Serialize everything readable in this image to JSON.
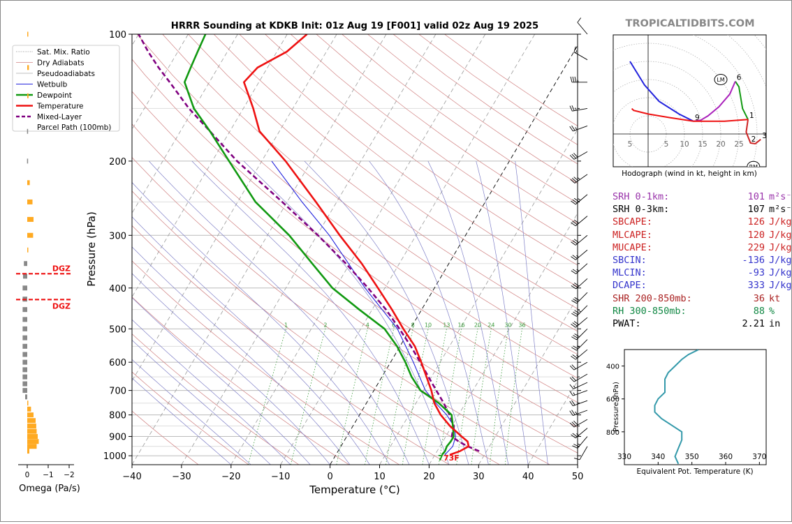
{
  "title": "HRRR Sounding at KDKB Init: 01z Aug 19 [F001] valid 02z Aug 19 2025",
  "site": "TROPICALTIDBITS.COM",
  "colors": {
    "temperature": "#ee1111",
    "dewpoint": "#119911",
    "wetbulb": "#2222dd",
    "parcel": "#800080",
    "dry_adiabat": "#d08080",
    "moist_adiabat": "#8080c8",
    "mixing_ratio": "#3a9a3a",
    "theta_e": "#3399aa",
    "dgz": "#ee1111",
    "omega_neg": "#ffaa22",
    "omega_pos": "#888888"
  },
  "legend": [
    {
      "label": "Sat. Mix. Ratio",
      "style": "dotted"
    },
    {
      "label": "Dry Adiabats",
      "style": "dry"
    },
    {
      "label": "Pseudoadiabats",
      "style": "moist"
    },
    {
      "label": "Wetbulb",
      "style": "wetbulb"
    },
    {
      "label": "Dewpoint",
      "style": "dewpoint"
    },
    {
      "label": "Temperature",
      "style": "temperature"
    },
    {
      "label": "Mixed-Layer",
      "label2": "Parcel Path (100mb)",
      "style": "parcel"
    }
  ],
  "omega_label": "Omega (Pa/s)",
  "omega_ticks": [
    "0",
    "−1",
    "−2"
  ],
  "dgz_label": "DGZ",
  "hodograph_caption": "Hodograph (wind in kt, height in km)",
  "lm_label": "LM",
  "rm_label": "RM",
  "theta_e_xlabel": "Equivalent Pot. Temperature (K)",
  "theta_e_ylabel": "Pressure (hPa)",
  "surface_temp_label": "73F",
  "surface_dew_label": "7",
  "params": [
    {
      "label": "SRH 0-1km:",
      "value": "101",
      "unit": "m²s⁻²",
      "color": "#9933aa"
    },
    {
      "label": "SRH 0-3km:",
      "value": "107",
      "unit": "m²s⁻²",
      "color": "#000000"
    },
    {
      "label": "SBCAPE:",
      "value": "126",
      "unit": "J/kg",
      "color": "#cc2222"
    },
    {
      "label": "MLCAPE:",
      "value": "120",
      "unit": "J/kg",
      "color": "#cc2222"
    },
    {
      "label": "MUCAPE:",
      "value": "229",
      "unit": "J/kg",
      "color": "#cc2222"
    },
    {
      "label": "SBCIN:",
      "value": "-136",
      "unit": "J/kg",
      "color": "#3333cc"
    },
    {
      "label": "MLCIN:",
      "value": "-93",
      "unit": "J/kg",
      "color": "#3333cc"
    },
    {
      "label": "DCAPE:",
      "value": "333",
      "unit": "J/kg",
      "color": "#3333cc"
    },
    {
      "label": "SHR 200-850mb:",
      "value": "36",
      "unit": "kt",
      "color": "#aa2222"
    },
    {
      "label": "RH 300-850mb:",
      "value": "88",
      "unit": "%",
      "color": "#118844"
    },
    {
      "label": "PWAT:",
      "value": "2.21",
      "unit": "in",
      "color": "#000000"
    }
  ],
  "chart_data": [
    {
      "type": "line",
      "name": "skewt",
      "title": "HRRR Sounding at KDKB Init: 01z Aug 19 [F001] valid 02z Aug 19 2025",
      "xlabel": "Temperature (°C)",
      "ylabel": "Pressure (hPa)",
      "xlim": [
        -40,
        50
      ],
      "ylim": [
        1050,
        100
      ],
      "yscale": "log",
      "xticks": [
        -40,
        -30,
        -20,
        -10,
        0,
        10,
        20,
        30,
        40,
        50
      ],
      "yticks": [
        100,
        200,
        300,
        400,
        500,
        600,
        700,
        800,
        900,
        1000
      ],
      "xtick_labels": [
        "−40",
        "−30",
        "−20",
        "−10",
        "0",
        "10",
        "20",
        "30",
        "40",
        "50"
      ],
      "ytick_labels": [
        "100",
        "200",
        "300",
        "400",
        "500",
        "600",
        "700",
        "800",
        "900",
        "1000"
      ],
      "mixing_ratio_labels": [
        "1",
        "2",
        "4",
        "6",
        "8",
        "10",
        "13",
        "16",
        "20",
        "24",
        "30",
        "36"
      ],
      "series": [
        {
          "name": "Temperature",
          "p": [
            995,
            975,
            950,
            925,
            900,
            850,
            800,
            750,
            700,
            650,
            600,
            550,
            500,
            450,
            400,
            350,
            300,
            250,
            200,
            170,
            150,
            130,
            120,
            110,
            100
          ],
          "t": [
            23.0,
            24.6,
            25.8,
            25.0,
            23.2,
            19.6,
            16.4,
            13.7,
            11.6,
            9.0,
            6.2,
            3.0,
            -1.4,
            -6.0,
            -11.4,
            -17.6,
            -25.4,
            -34.2,
            -45.2,
            -54.0,
            -58.0,
            -63.0,
            -62.0,
            -58.0,
            -56.0
          ]
        },
        {
          "name": "Dewpoint",
          "p": [
            995,
            975,
            950,
            925,
            900,
            850,
            800,
            750,
            700,
            650,
            600,
            550,
            500,
            450,
            400,
            350,
            300,
            250,
            200,
            170,
            150,
            130,
            120,
            110,
            100
          ],
          "t": [
            21.4,
            21.6,
            21.4,
            21.6,
            21.6,
            20.2,
            18.6,
            14.6,
            9.4,
            6.0,
            3.0,
            -0.6,
            -5.2,
            -12.6,
            -20.6,
            -27.6,
            -35.6,
            -46.4,
            -56.6,
            -64.0,
            -70.0,
            -75.0,
            -75.5,
            -76.0,
            -76.5
          ]
        },
        {
          "name": "Wetbulb",
          "p": [
            995,
            950,
            900,
            850,
            800,
            750,
            700,
            600,
            500,
            400,
            300,
            250,
            200
          ],
          "t": [
            22.0,
            22.6,
            22.0,
            20.4,
            17.6,
            14.0,
            10.4,
            4.6,
            -2.6,
            -14.0,
            -27.5,
            -37.0,
            -48.0
          ]
        },
        {
          "name": "Mixed-Layer Parcel Path (100mb)",
          "p": [
            975,
            950,
            925,
            900,
            875,
            850,
            800,
            750,
            700,
            650,
            600,
            550,
            500,
            450,
            400,
            350,
            300,
            250,
            200,
            170,
            150,
            130,
            120,
            110,
            100
          ],
          "t": [
            28.5,
            25.6,
            23.2,
            21.2,
            20.8,
            20.4,
            18.2,
            15.6,
            12.6,
            9.4,
            6.0,
            2.2,
            -2.2,
            -7.2,
            -13.4,
            -20.8,
            -29.8,
            -41.0,
            -55.0,
            -64.0,
            -71.0,
            -78.0,
            -82.0,
            -86.0,
            -90.0
          ]
        }
      ],
      "barbs": {
        "p": [
          100,
          115,
          130,
          150,
          165,
          190,
          215,
          240,
          270,
          300,
          325,
          350,
          380,
          410,
          440,
          470,
          500,
          530,
          560,
          600,
          640,
          670,
          700,
          740,
          780,
          820,
          860,
          900,
          950
        ],
        "dir": [
          320,
          300,
          270,
          260,
          250,
          240,
          235,
          230,
          230,
          230,
          230,
          228,
          228,
          225,
          225,
          230,
          225,
          225,
          230,
          240,
          240,
          245,
          250,
          250,
          250,
          240,
          230,
          220,
          210
        ],
        "spd": [
          10,
          15,
          35,
          25,
          25,
          30,
          35,
          35,
          30,
          30,
          25,
          25,
          30,
          30,
          35,
          30,
          30,
          25,
          25,
          20,
          20,
          15,
          15,
          20,
          25,
          30,
          25,
          25,
          10
        ]
      }
    },
    {
      "type": "line",
      "name": "hodograph",
      "title": "Hodograph (wind in kt, height in km)",
      "xlim": [
        -10,
        33
      ],
      "ylim": [
        -9,
        28
      ],
      "ring_labels": [
        "5",
        "5",
        "10",
        "15",
        "20",
        "25"
      ],
      "height_labels": [
        {
          "km": "1",
          "u": 27.5,
          "v": 4
        },
        {
          "km": "2",
          "u": 28,
          "v": -2.5
        },
        {
          "km": "3",
          "u": 31,
          "v": -1.5
        },
        {
          "km": "6",
          "u": 24,
          "v": 14.5
        },
        {
          "km": "9",
          "u": 12.5,
          "v": 3.5
        }
      ],
      "series": [
        {
          "name": "0-3 km",
          "color": "#cc2222",
          "u": [
            27.5,
            27.0,
            28.2,
            29.5,
            31.0
          ],
          "v": [
            4.0,
            0.5,
            -2.5,
            -2.7,
            -1.5
          ]
        },
        {
          "name": "3-6 km",
          "color": "#119911",
          "u": [
            27.5,
            26.0,
            25.5,
            25.0,
            24.0
          ],
          "v": [
            4.0,
            7.0,
            10.0,
            13.0,
            14.5
          ]
        },
        {
          "name": "6-9 km",
          "color": "#aa22bb",
          "u": [
            24.0,
            22.5,
            19.5,
            16.5,
            14.5,
            12.5
          ],
          "v": [
            14.5,
            11.0,
            7.5,
            5.0,
            3.8,
            3.5
          ]
        },
        {
          "name": "9-12 km",
          "color": "#2222dd",
          "u": [
            12.5,
            8.5,
            3.0,
            -1.0,
            -5.0
          ],
          "v": [
            3.5,
            5.5,
            9.0,
            13.5,
            20.0
          ]
        },
        {
          "name": "12+ km",
          "color": "#ee1111",
          "u": [
            12.5,
            6.0,
            0.0,
            -4.0,
            -4.5
          ],
          "v": [
            3.5,
            4.5,
            5.5,
            6.5,
            7.0
          ]
        },
        {
          "name": "lowest layer",
          "color": "#ee1111",
          "u": [
            27.5,
            21.0,
            16.0,
            12.5
          ],
          "v": [
            4.0,
            3.5,
            3.5,
            3.5
          ]
        }
      ],
      "lm": {
        "u": 20,
        "v": 15
      },
      "rm": {
        "u": 29,
        "v": -9
      }
    },
    {
      "type": "line",
      "name": "theta_e",
      "xlabel": "Equivalent Pot. Temperature (K)",
      "ylabel": "Pressure (hPa)",
      "xlim": [
        330,
        372
      ],
      "ylim": [
        1000,
        300
      ],
      "xticks": [
        330,
        340,
        350,
        360,
        370
      ],
      "yticks": [
        400,
        600,
        800
      ],
      "series": [
        {
          "name": "Theta-E",
          "p": [
            995,
            950,
            900,
            850,
            800,
            760,
            720,
            680,
            640,
            600,
            560,
            520,
            480,
            440,
            400,
            360,
            330,
            300
          ],
          "theta_e": [
            346,
            345,
            346,
            347,
            347,
            344,
            341,
            339,
            339,
            340,
            342,
            342,
            342,
            343,
            345,
            347,
            349,
            352
          ]
        }
      ]
    },
    {
      "type": "bar",
      "name": "omega",
      "xlabel": "Omega (Pa/s)",
      "xlim": [
        0.3,
        -2.2
      ],
      "p": [
        100,
        120,
        140,
        170,
        200,
        225,
        250,
        275,
        300,
        325,
        350,
        375,
        400,
        425,
        450,
        475,
        500,
        525,
        550,
        575,
        600,
        625,
        650,
        675,
        700,
        725,
        750,
        775,
        800,
        825,
        850,
        875,
        900,
        925,
        950,
        975,
        1000
      ],
      "omega": [
        -0.02,
        -0.08,
        -0.06,
        0.01,
        0.01,
        -0.12,
        -0.25,
        -0.3,
        -0.28,
        -0.04,
        0.16,
        0.2,
        0.22,
        0.22,
        0.22,
        0.22,
        0.22,
        0.22,
        0.22,
        0.22,
        0.22,
        0.22,
        0.22,
        0.22,
        0.22,
        0.1,
        -0.03,
        -0.18,
        -0.3,
        -0.4,
        -0.43,
        -0.45,
        -0.5,
        -0.55,
        -0.45,
        -0.1,
        0.0
      ],
      "dgz": [
        370,
        426
      ]
    }
  ]
}
